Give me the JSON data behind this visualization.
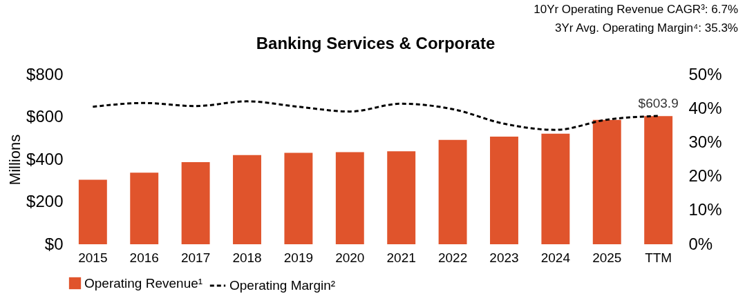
{
  "chart_data": {
    "type": "bar",
    "title": "Banking Services & Corporate",
    "ylabel": "Millions",
    "annotations": [
      "10Yr Operating Revenue CAGR³: 6.7%",
      "3Yr Avg. Operating Margin⁴: 35.3%"
    ],
    "categories": [
      "2015",
      "2016",
      "2017",
      "2018",
      "2019",
      "2020",
      "2021",
      "2022",
      "2023",
      "2024",
      "2025",
      "TTM"
    ],
    "series": [
      {
        "name": "Operating Revenue¹",
        "color": "#e0542c",
        "values": [
          304,
          337,
          387,
          420,
          431,
          434,
          438,
          492,
          507,
          521,
          586,
          603.9
        ],
        "value_labels": [
          null,
          null,
          null,
          null,
          null,
          null,
          null,
          null,
          null,
          null,
          null,
          "$603.9"
        ]
      },
      {
        "name": "Operating Margin²",
        "type": "line",
        "axis": "y2",
        "color": "#000000",
        "line_style": "dashed",
        "marker": "none",
        "values": [
          40.5,
          41.6,
          40.7,
          42.1,
          40.5,
          39.1,
          41.4,
          39.8,
          35.5,
          33.7,
          36.7,
          37.8
        ]
      }
    ],
    "ylim": [
      0,
      800
    ],
    "yticks": [
      {
        "value": 0,
        "label": "$0"
      },
      {
        "value": 200,
        "label": "$200"
      },
      {
        "value": 400,
        "label": "$400"
      },
      {
        "value": 600,
        "label": "$600"
      },
      {
        "value": 800,
        "label": "$800"
      }
    ],
    "y2lim": [
      0,
      50
    ],
    "y2ticks": [
      {
        "value": 0,
        "label": "0%"
      },
      {
        "value": 10,
        "label": "10%"
      },
      {
        "value": 20,
        "label": "20%"
      },
      {
        "value": 30,
        "label": "30%"
      },
      {
        "value": 40,
        "label": "40%"
      },
      {
        "value": 50,
        "label": "50%"
      }
    ],
    "grid": false,
    "legend": "bottom"
  }
}
